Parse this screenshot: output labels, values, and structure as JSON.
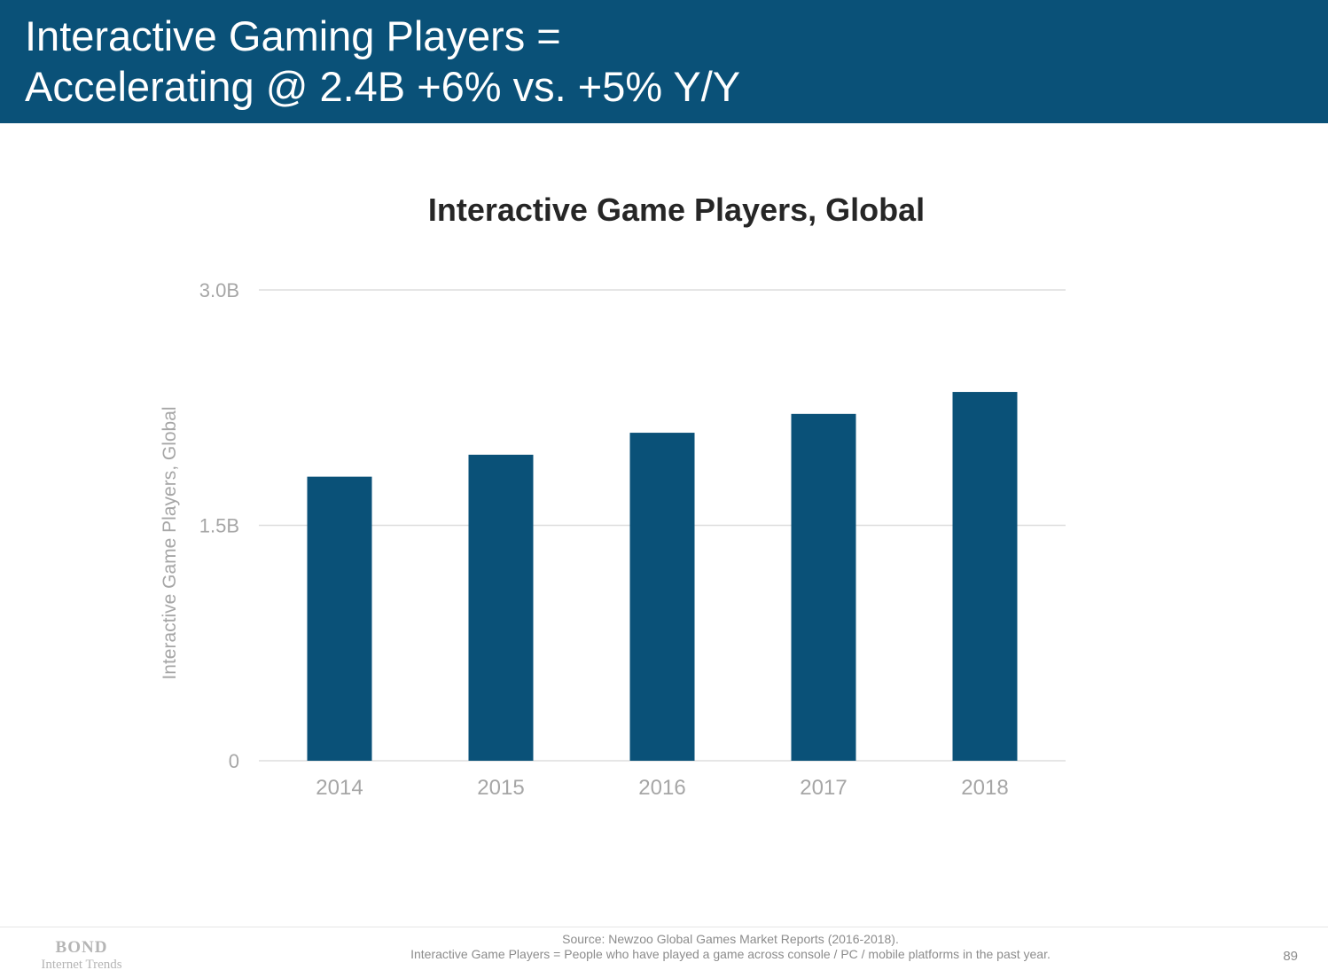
{
  "header": {
    "title_line1": "Interactive Gaming Players =",
    "title_line2": "Accelerating @ 2.4B +6% vs. +5% Y/Y",
    "background_color": "#0a5178"
  },
  "chart_data": {
    "type": "bar",
    "title": "Interactive Game Players, Global",
    "xlabel": "",
    "ylabel": "Interactive Game Players, Global",
    "categories": [
      "2014",
      "2015",
      "2016",
      "2017",
      "2018"
    ],
    "values": [
      1.81,
      1.95,
      2.09,
      2.21,
      2.35
    ],
    "unit": "B",
    "ylim": [
      0,
      3.0
    ],
    "yticks": [
      {
        "value": 0,
        "label": "0"
      },
      {
        "value": 1.5,
        "label": "1.5B"
      },
      {
        "value": 3.0,
        "label": "3.0B"
      }
    ],
    "grid": true,
    "legend": "none",
    "bar_color": "#0a5178"
  },
  "footer": {
    "logo_line1": "BOND",
    "logo_line2": "Internet Trends",
    "source_line1": "Source: Newzoo Global Games Market Reports (2016-2018).",
    "source_line2": "Interactive Game Players = People who have played a game across console / PC / mobile platforms in the past year.",
    "page_number": "89"
  }
}
